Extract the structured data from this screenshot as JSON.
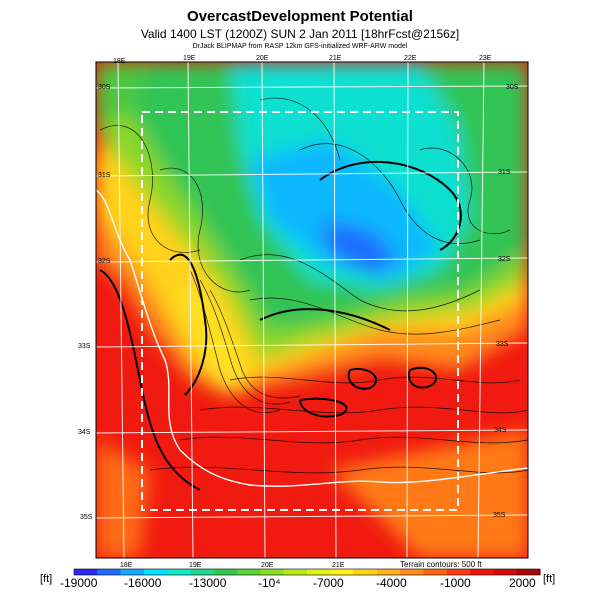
{
  "header": {
    "title": "OvercastDevelopment Potential",
    "valid": "Valid 1400 LST (1200Z) SUN 2 Jan 2011 [18hrFcst@2156z]",
    "source": "DrJack BLIPMAP from RASP 12km GFS-initialized WRF-ARW model"
  },
  "map": {
    "lon_labels_top": [
      "18E",
      "19E",
      "20E",
      "21E",
      "22E",
      "23E"
    ],
    "lon_labels_bottom": [
      "18E",
      "19E",
      "20E",
      "21E"
    ],
    "lat_labels_left": [
      "30S",
      "31S",
      "32S",
      "33S",
      "34S",
      "35S"
    ],
    "lat_labels_right": [
      "30S",
      "31S",
      "32S",
      "33S",
      "34S",
      "35S"
    ],
    "contour_note": "Terrain contours: 500 ft"
  },
  "colorbar": {
    "unit_left": "[ft]",
    "unit_right": "[ft]",
    "ticks": [
      "-19000",
      "-16000",
      "-13000",
      "-10⁴",
      "-7000",
      "-4000",
      "-1000",
      "2000"
    ],
    "colors": [
      "#2a2aff",
      "#1e6eff",
      "#16aaff",
      "#00e0ff",
      "#10e8c8",
      "#22d690",
      "#34c850",
      "#5ad23a",
      "#8ae028",
      "#b8ea1e",
      "#e6f020",
      "#fff01e",
      "#ffd21e",
      "#ffb01e",
      "#ff8c1e",
      "#ff6414",
      "#ff3c10",
      "#f0140e",
      "#d00c0c",
      "#a80808"
    ]
  }
}
